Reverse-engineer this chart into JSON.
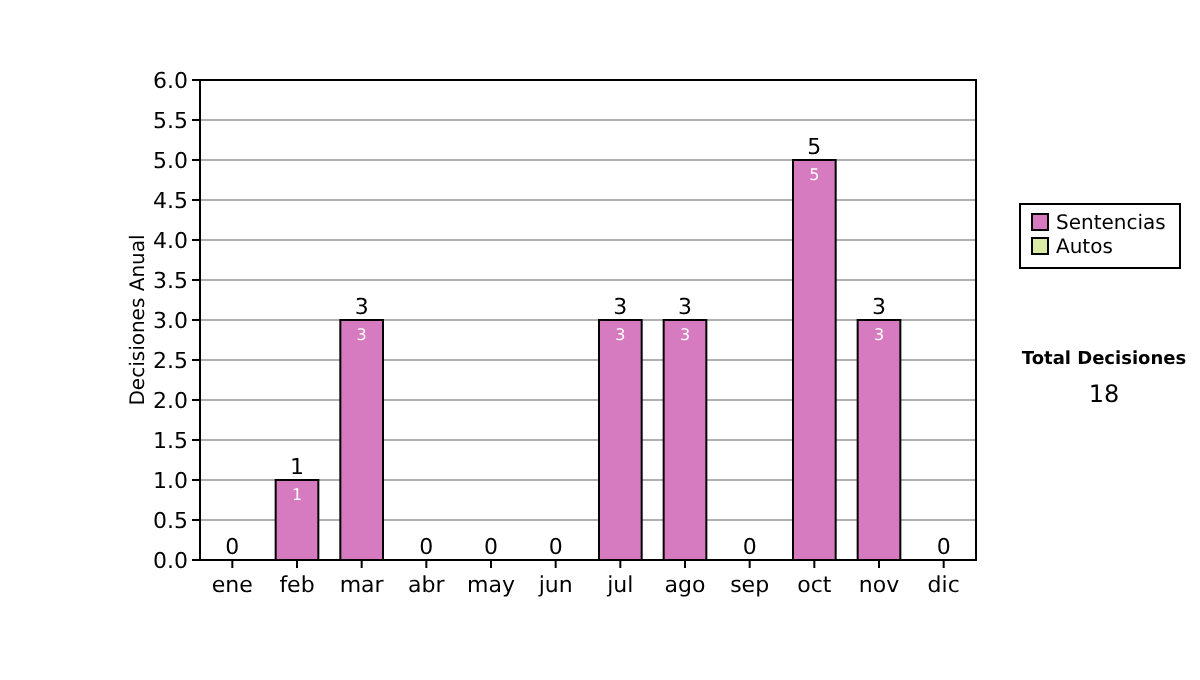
{
  "chart_data": {
    "type": "bar",
    "stacked": true,
    "ylabel": "Decisiones Anual",
    "categories": [
      "ene",
      "feb",
      "mar",
      "abr",
      "may",
      "jun",
      "jul",
      "ago",
      "sep",
      "oct",
      "nov",
      "dic"
    ],
    "series": [
      {
        "name": "Sentencias",
        "color": "#d67bbf",
        "values": [
          0,
          1,
          3,
          0,
          0,
          0,
          3,
          3,
          0,
          5,
          3,
          0
        ],
        "value_labels": [
          null,
          "1",
          "3",
          null,
          null,
          null,
          "3",
          "3",
          null,
          "5",
          "3",
          null
        ]
      },
      {
        "name": "Autos",
        "color": "#d9eaa5",
        "values": [
          0,
          0,
          0,
          0,
          0,
          0,
          0,
          0,
          0,
          0,
          0,
          0
        ]
      }
    ],
    "totals": [
      "0",
      "1",
      "3",
      "0",
      "0",
      "0",
      "3",
      "3",
      "0",
      "5",
      "3",
      "0"
    ],
    "ylim": [
      0,
      6
    ],
    "yticks": [
      {
        "value": 0,
        "label": "0.0"
      },
      {
        "value": 0.5,
        "label": "0.5"
      },
      {
        "value": 1,
        "label": "1.0"
      },
      {
        "value": 1.5,
        "label": "1.5"
      },
      {
        "value": 2,
        "label": "2.0"
      },
      {
        "value": 2.5,
        "label": "2.5"
      },
      {
        "value": 3,
        "label": "3.0"
      },
      {
        "value": 3.5,
        "label": "3.5"
      },
      {
        "value": 4,
        "label": "4.0"
      },
      {
        "value": 4.5,
        "label": "4.5"
      },
      {
        "value": 5,
        "label": "5.0"
      },
      {
        "value": 5.5,
        "label": "5.5"
      },
      {
        "value": 6,
        "label": "6.0"
      }
    ],
    "grid": "y",
    "legend": "right",
    "annotations": [
      "Total Decisiones",
      "18"
    ]
  }
}
